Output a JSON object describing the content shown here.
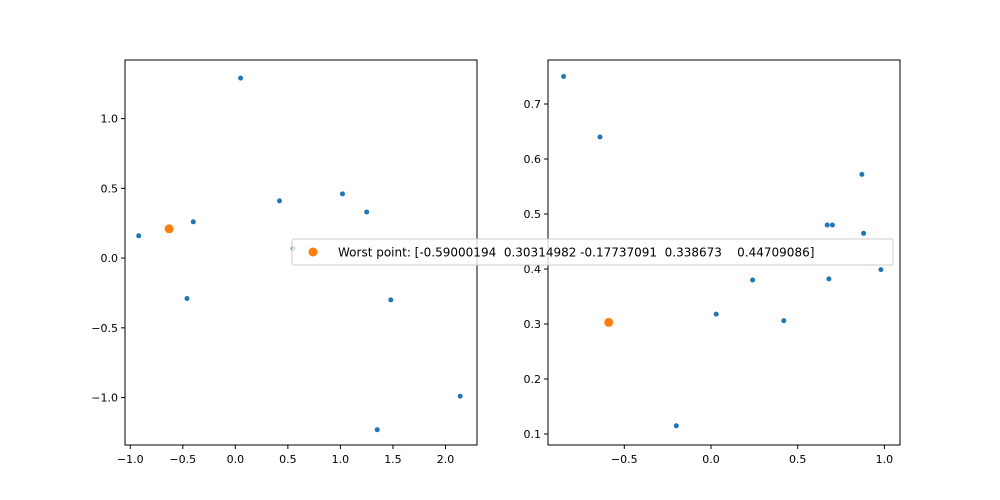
{
  "colors": {
    "series_points": "#1f77b4",
    "worst_point": "#ff7f0e",
    "axes": "#000000",
    "legend_border": "#cccccc"
  },
  "chart_data": [
    {
      "type": "scatter",
      "xlim": [
        -1.05,
        2.3
      ],
      "ylim": [
        -1.34,
        1.42
      ],
      "xticks": [
        -1.0,
        -0.5,
        0.0,
        0.5,
        1.0,
        1.5,
        2.0
      ],
      "xtick_labels": [
        "−1.0",
        "−0.5",
        "0.0",
        "0.5",
        "1.0",
        "1.5",
        "2.0"
      ],
      "yticks": [
        -1.0,
        -0.5,
        0.0,
        0.5,
        1.0
      ],
      "ytick_labels": [
        "−1.0",
        "−0.5",
        "0.0",
        "0.5",
        "1.0"
      ],
      "grid": false,
      "series": [
        {
          "points": [
            [
              -0.92,
              0.16
            ],
            [
              -0.4,
              0.26
            ],
            [
              -0.46,
              -0.29
            ],
            [
              0.05,
              1.29
            ],
            [
              0.42,
              0.41
            ],
            [
              0.55,
              0.07
            ],
            [
              1.02,
              0.46
            ],
            [
              1.25,
              0.33
            ],
            [
              1.48,
              -0.3
            ],
            [
              1.35,
              -1.23
            ],
            [
              2.14,
              -0.99
            ]
          ]
        },
        {
          "points": [
            [
              -0.63,
              0.21
            ]
          ]
        }
      ]
    },
    {
      "type": "scatter",
      "xlim": [
        -0.94,
        1.09
      ],
      "ylim": [
        0.08,
        0.78
      ],
      "xticks": [
        -0.5,
        0.0,
        0.5,
        1.0
      ],
      "xtick_labels": [
        "−0.5",
        "0.0",
        "0.5",
        "1.0"
      ],
      "yticks": [
        0.1,
        0.2,
        0.3,
        0.4,
        0.5,
        0.6,
        0.7
      ],
      "ytick_labels": [
        "0.1",
        "0.2",
        "0.3",
        "0.4",
        "0.5",
        "0.6",
        "0.7"
      ],
      "grid": false,
      "series": [
        {
          "points": [
            [
              -0.85,
              0.75
            ],
            [
              -0.64,
              0.64
            ],
            [
              -0.2,
              0.115
            ],
            [
              0.03,
              0.318
            ],
            [
              0.24,
              0.38
            ],
            [
              0.42,
              0.306
            ],
            [
              0.67,
              0.48
            ],
            [
              0.7,
              0.48
            ],
            [
              0.68,
              0.382
            ],
            [
              0.87,
              0.572
            ],
            [
              0.88,
              0.465
            ],
            [
              0.98,
              0.399
            ]
          ]
        },
        {
          "points": [
            [
              -0.59,
              0.303
            ]
          ]
        }
      ]
    }
  ],
  "legend": {
    "label": "Worst point: [-0.59000194  0.30314982 -0.17737091  0.338673    0.44709086]",
    "placement": "center"
  }
}
